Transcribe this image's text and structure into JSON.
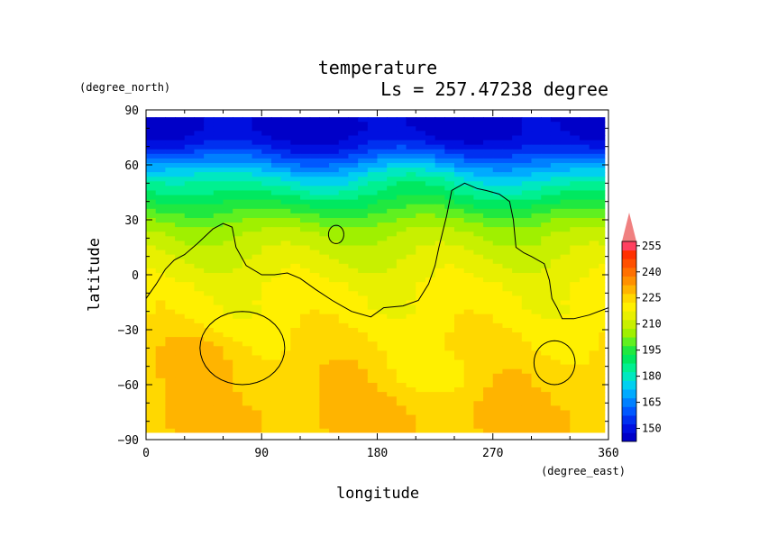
{
  "chart_data": {
    "type": "heatmap",
    "title": "temperature",
    "subtitle": "Ls = 257.47238 degree",
    "xlabel": "longitude",
    "ylabel": "latitude",
    "xunit": "(degree_east)",
    "yunit": "(degree_north)",
    "xlim": [
      0,
      360
    ],
    "ylim": [
      -90,
      90
    ],
    "xticks": [
      "0",
      "90",
      "180",
      "270",
      "360"
    ],
    "yticks": [
      "90",
      "60",
      "30",
      "0",
      "−30",
      "−60",
      "−90"
    ],
    "colorbar": {
      "levels": [
        145,
        150,
        155,
        160,
        165,
        170,
        175,
        180,
        185,
        190,
        195,
        200,
        205,
        210,
        215,
        220,
        225,
        230,
        235,
        240,
        245,
        250,
        255,
        260
      ],
      "labels": [
        "150",
        "165",
        "180",
        "195",
        "210",
        "225",
        "240",
        "255"
      ],
      "colors": [
        "#0000c8",
        "#0010e0",
        "#0030f0",
        "#0058ff",
        "#0080ff",
        "#00aaff",
        "#00d0f0",
        "#00e8c0",
        "#00f090",
        "#00e860",
        "#20e840",
        "#60f020",
        "#a0f000",
        "#c8f000",
        "#e8f000",
        "#fff000",
        "#ffd800",
        "#ffb400",
        "#ff9000",
        "#ff7000",
        "#ff5000",
        "#ff3000",
        "#ff4060"
      ],
      "extend_top_color": "#f08080"
    },
    "latitudes": [
      85,
      80,
      75,
      70,
      65,
      60,
      55,
      50,
      45,
      40,
      35,
      30,
      25,
      20,
      15,
      10,
      5,
      0,
      -5,
      -10,
      -15,
      -20,
      -25,
      -30,
      -35,
      -40,
      -45,
      -50,
      -55,
      -60,
      -65,
      -70,
      -75,
      -80,
      -85
    ],
    "zonal_mean_temperature": [
      148,
      148,
      150,
      155,
      162,
      170,
      178,
      184,
      189,
      194,
      199,
      204,
      208,
      211,
      213,
      215,
      217,
      218,
      220,
      221,
      222,
      222,
      223,
      224,
      225,
      226,
      227,
      228,
      229,
      229,
      230,
      230,
      231,
      231,
      231
    ],
    "contour_level": 222
  }
}
